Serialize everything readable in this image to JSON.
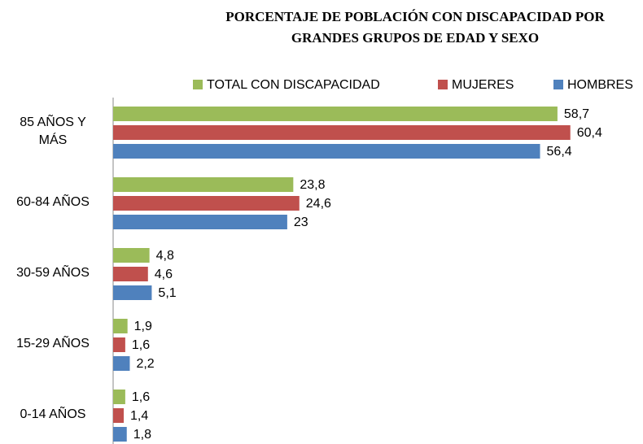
{
  "chart_data": {
    "type": "hbar",
    "title": "PORCENTAJE DE POBLACIÓN CON DISCAPACIDAD POR GRANDES GRUPOS DE EDAD Y SEXO",
    "categories": [
      "85 AÑOS Y MÁS",
      "60-84 AÑOS",
      "30-59 AÑOS",
      "15-29 AÑOS",
      "0-14 AÑOS"
    ],
    "series": [
      {
        "name": "TOTAL CON DISCAPACIDAD",
        "color": "#9bbb59",
        "values": [
          58.7,
          23.8,
          4.8,
          1.9,
          1.6
        ],
        "value_labels": [
          "58,7",
          "23,8",
          "4,8",
          "1,9",
          "1,6"
        ]
      },
      {
        "name": "MUJERES",
        "color": "#c0504d",
        "values": [
          60.4,
          24.6,
          4.6,
          1.6,
          1.4
        ],
        "value_labels": [
          "60,4",
          "24,6",
          "4,6",
          "1,6",
          "1,4"
        ]
      },
      {
        "name": "HOMBRES",
        "color": "#4f81bd",
        "values": [
          56.4,
          23,
          5.1,
          2.2,
          1.8
        ],
        "value_labels": [
          "56,4",
          "23",
          "5,1",
          "2,2",
          "1,8"
        ]
      }
    ],
    "xlim": [
      0,
      70
    ],
    "legend": "top"
  }
}
